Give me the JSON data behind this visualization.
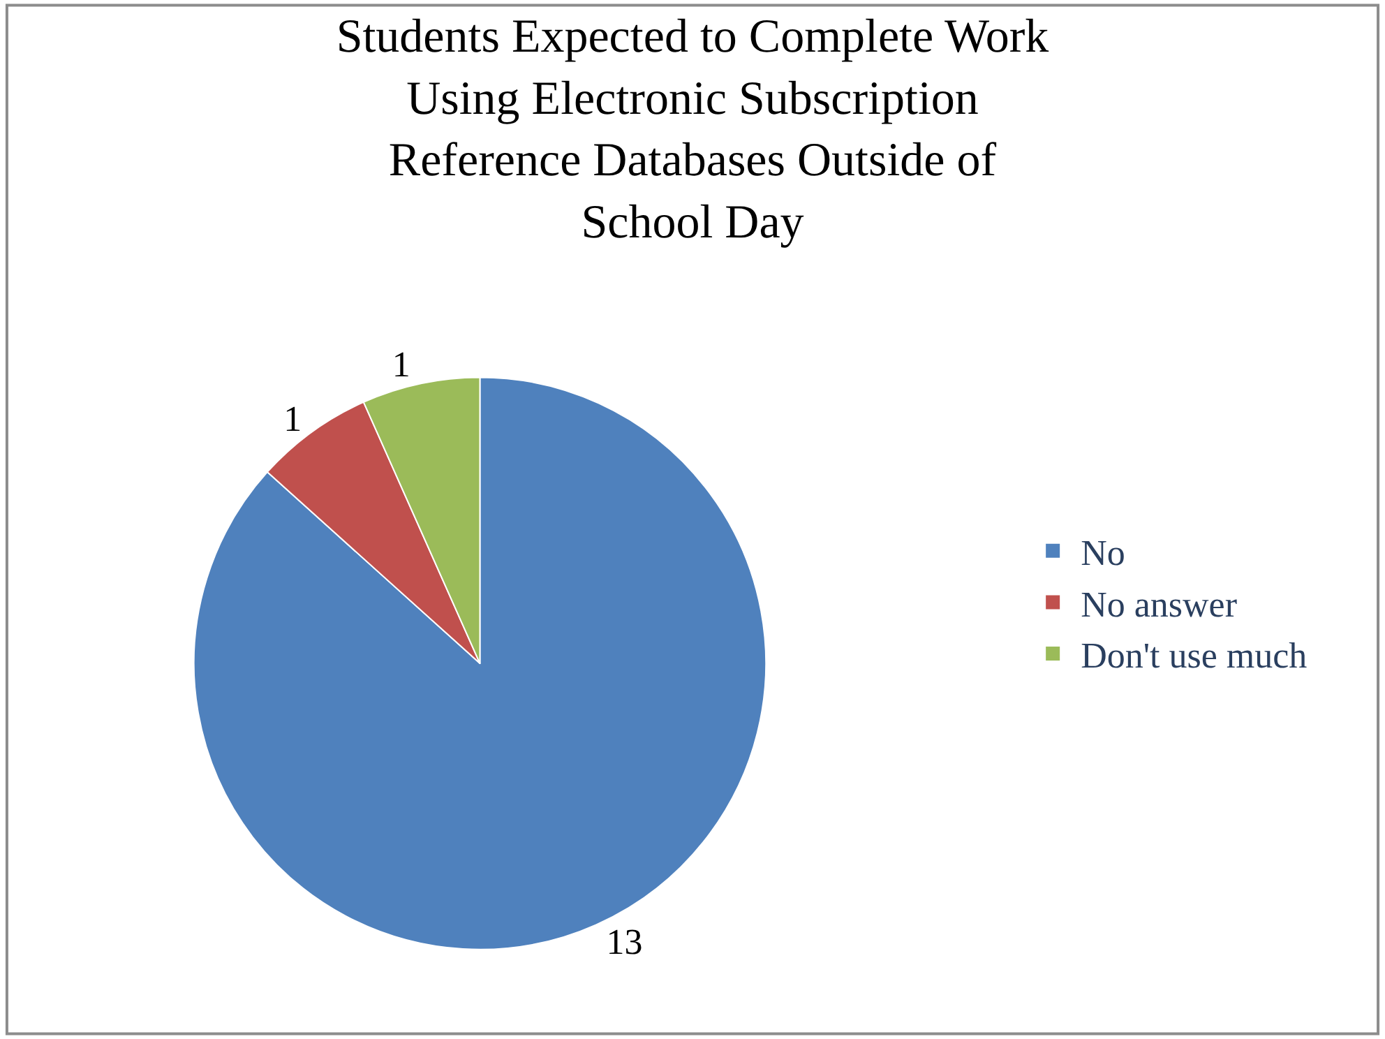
{
  "chart_data": {
    "type": "pie",
    "title": "Students Expected to Complete Work\nUsing Electronic Subscription\nReference Databases Outside of\nSchool Day",
    "categories": [
      "No",
      "No answer",
      "Don't use much"
    ],
    "values": [
      13,
      1,
      1
    ],
    "colors": [
      "#4f81bd",
      "#c0504d",
      "#9bbb59"
    ],
    "data_labels": true,
    "legend": "right"
  }
}
